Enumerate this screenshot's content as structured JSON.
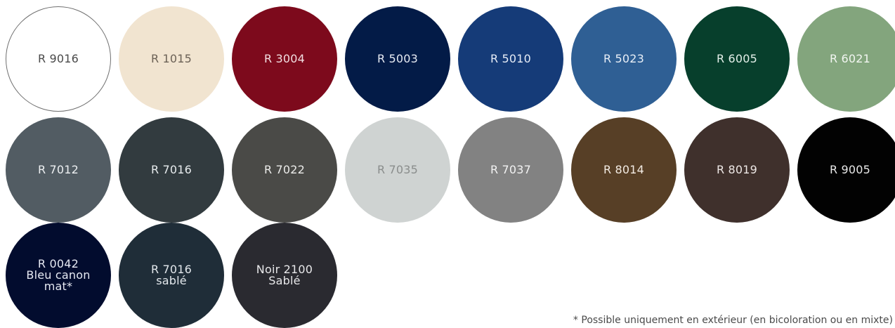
{
  "swatches": [
    {
      "name": "swatch-r-9016",
      "label": "R 9016",
      "color": "#ffffff",
      "text_color": "#4a4a4a",
      "outlined": true
    },
    {
      "name": "swatch-r-1015",
      "label": "R 1015",
      "color": "#f1e4d0",
      "text_color": "#6b6156"
    },
    {
      "name": "swatch-r-3004",
      "label": "R 3004",
      "color": "#7d0a1c",
      "text_color": "#f2dfe2"
    },
    {
      "name": "swatch-r-5003",
      "label": "R 5003",
      "color": "#031b47",
      "text_color": "#e6eaf2"
    },
    {
      "name": "swatch-r-5010",
      "label": "R 5010",
      "color": "#153b78",
      "text_color": "#e6ecf6"
    },
    {
      "name": "swatch-r-5023",
      "label": "R 5023",
      "color": "#2f5f94",
      "text_color": "#e8eef6"
    },
    {
      "name": "swatch-r-6005",
      "label": "R 6005",
      "color": "#073f2c",
      "text_color": "#e3efe9"
    },
    {
      "name": "swatch-r-6021",
      "label": "R 6021",
      "color": "#83a57d",
      "text_color": "#f2f6f1"
    },
    {
      "name": "swatch-r-7012",
      "label": "R 7012",
      "color": "#525c63",
      "text_color": "#edf0f2"
    },
    {
      "name": "swatch-r-7016",
      "label": "R 7016",
      "color": "#323b3f",
      "text_color": "#e8ecee"
    },
    {
      "name": "swatch-r-7022",
      "label": "R 7022",
      "color": "#4a4a47",
      "text_color": "#ececea"
    },
    {
      "name": "swatch-r-7035",
      "label": "R 7035",
      "color": "#cfd3d2",
      "text_color": "#8a8d8c"
    },
    {
      "name": "swatch-r-7037",
      "label": "R 7037",
      "color": "#828282",
      "text_color": "#f3f3f3"
    },
    {
      "name": "swatch-r-8014",
      "label": "R 8014",
      "color": "#573f26",
      "text_color": "#f2ebe3"
    },
    {
      "name": "swatch-r-8019",
      "label": "R 8019",
      "color": "#3f302c",
      "text_color": "#eee8e6"
    },
    {
      "name": "swatch-r-9005",
      "label": "R 9005",
      "color": "#020202",
      "text_color": "#e8e8e8"
    },
    {
      "name": "swatch-r-0042",
      "label": "R 0042\nBleu canon\nmat*",
      "color": "#020c2e",
      "text_color": "#e6e9f2"
    },
    {
      "name": "swatch-r-7016-sable",
      "label": "R 7016\nsablé",
      "color": "#1f2d38",
      "text_color": "#e3e8ec"
    },
    {
      "name": "swatch-noir-2100-sable",
      "label": "Noir 2100\nSablé",
      "color": "#2a2a30",
      "text_color": "#e8e8ea"
    }
  ],
  "footnote": "* Possible uniquement en extérieur (en bicoloration ou en mixte)"
}
